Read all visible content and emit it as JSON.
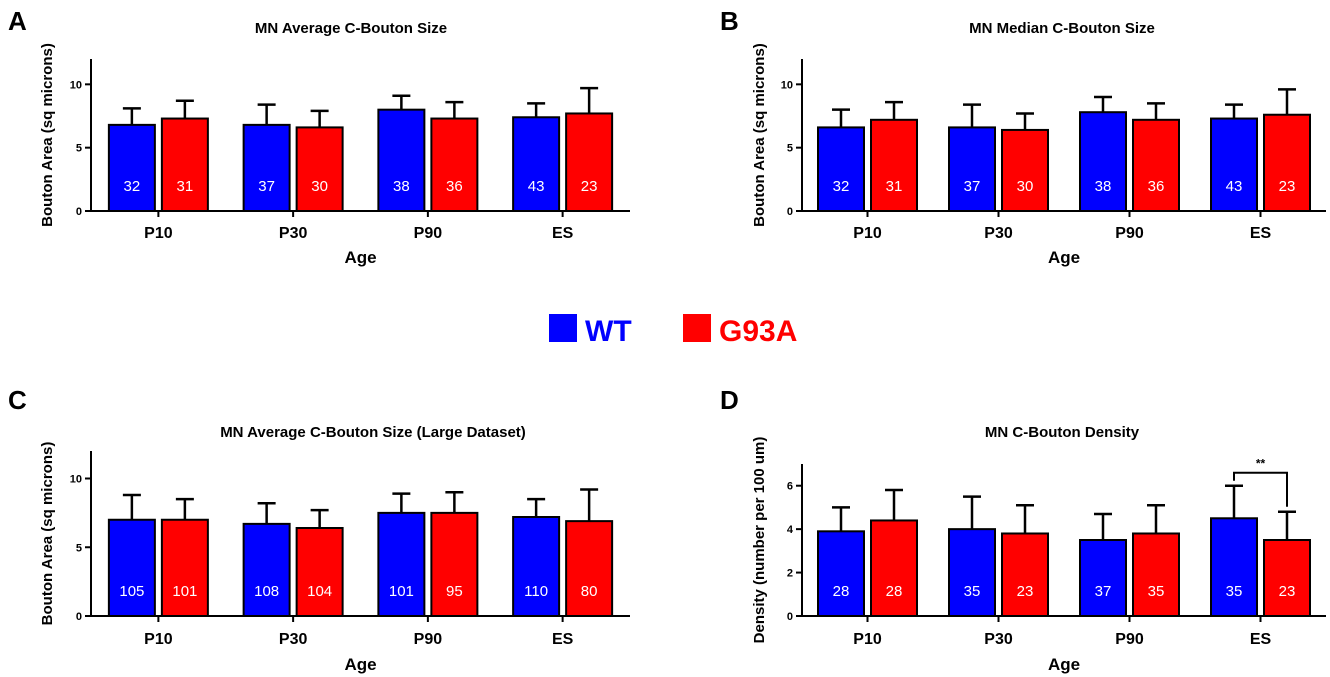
{
  "legend": [
    {
      "name": "WT",
      "color": "#0000ff"
    },
    {
      "name": "G93A",
      "color": "#ff0000"
    }
  ],
  "chart_data": [
    {
      "panel": "A",
      "type": "bar",
      "title": "MN Average C-Bouton Size",
      "xlabel": "Age",
      "ylabel": "Bouton Area (sq microns)",
      "ylim": [
        0,
        12
      ],
      "yticks": [
        0,
        5,
        10
      ],
      "categories": [
        "P10",
        "P30",
        "P90",
        "ES"
      ],
      "series": [
        {
          "name": "WT",
          "color": "#0000ff",
          "values": [
            6.8,
            6.8,
            8.0,
            7.4
          ],
          "error": [
            1.3,
            1.6,
            1.1,
            1.1
          ],
          "n": [
            "32",
            "37",
            "38",
            "43"
          ]
        },
        {
          "name": "G93A",
          "color": "#ff0000",
          "values": [
            7.3,
            6.6,
            7.3,
            7.7
          ],
          "error": [
            1.4,
            1.3,
            1.3,
            2.0
          ],
          "n": [
            "31",
            "30",
            "36",
            "23"
          ]
        }
      ],
      "significance": []
    },
    {
      "panel": "B",
      "type": "bar",
      "title": "MN Median C-Bouton Size",
      "xlabel": "Age",
      "ylabel": "Bouton Area (sq microns)",
      "ylim": [
        0,
        12
      ],
      "yticks": [
        0,
        5,
        10
      ],
      "categories": [
        "P10",
        "P30",
        "P90",
        "ES"
      ],
      "series": [
        {
          "name": "WT",
          "color": "#0000ff",
          "values": [
            6.6,
            6.6,
            7.8,
            7.3
          ],
          "error": [
            1.4,
            1.8,
            1.2,
            1.1
          ],
          "n": [
            "32",
            "37",
            "38",
            "43"
          ]
        },
        {
          "name": "G93A",
          "color": "#ff0000",
          "values": [
            7.2,
            6.4,
            7.2,
            7.6
          ],
          "error": [
            1.4,
            1.3,
            1.3,
            2.0
          ],
          "n": [
            "31",
            "30",
            "36",
            "23"
          ]
        }
      ],
      "significance": []
    },
    {
      "panel": "C",
      "type": "bar",
      "title": "MN Average C-Bouton Size (Large Dataset)",
      "xlabel": "Age",
      "ylabel": "Bouton Area (sq microns)",
      "ylim": [
        0,
        12
      ],
      "yticks": [
        0,
        5,
        10
      ],
      "categories": [
        "P10",
        "P30",
        "P90",
        "ES"
      ],
      "series": [
        {
          "name": "WT",
          "color": "#0000ff",
          "values": [
            7.0,
            6.7,
            7.5,
            7.2
          ],
          "error": [
            1.8,
            1.5,
            1.4,
            1.3
          ],
          "n": [
            "105",
            "108",
            "101",
            "110"
          ]
        },
        {
          "name": "G93A",
          "color": "#ff0000",
          "values": [
            7.0,
            6.4,
            7.5,
            6.9
          ],
          "error": [
            1.5,
            1.3,
            1.5,
            2.3
          ],
          "n": [
            "101",
            "104",
            "95",
            "80"
          ]
        }
      ],
      "significance": []
    },
    {
      "panel": "D",
      "type": "bar",
      "title": "MN C-Bouton Density",
      "xlabel": "Age",
      "ylabel": "Density (number per 100 um)",
      "ylim": [
        0,
        7
      ],
      "yticks": [
        0,
        2,
        4,
        6
      ],
      "categories": [
        "P10",
        "P30",
        "P90",
        "ES"
      ],
      "series": [
        {
          "name": "WT",
          "color": "#0000ff",
          "values": [
            3.9,
            4.0,
            3.5,
            4.5
          ],
          "error": [
            1.1,
            1.5,
            1.2,
            1.5
          ],
          "n": [
            "28",
            "35",
            "37",
            "35"
          ]
        },
        {
          "name": "G93A",
          "color": "#ff0000",
          "values": [
            4.4,
            3.8,
            3.8,
            3.5
          ],
          "error": [
            1.4,
            1.3,
            1.3,
            1.3
          ],
          "n": [
            "28",
            "23",
            "35",
            "23"
          ]
        }
      ],
      "significance": [
        {
          "category": "ES",
          "label": "**"
        }
      ]
    }
  ]
}
